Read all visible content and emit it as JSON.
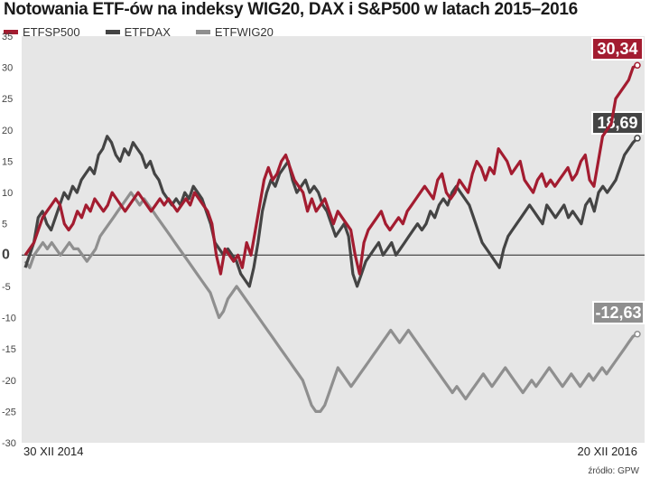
{
  "title": "Notowania ETF-ów na indeksy WIG20, DAX i S&P500  w latach 2015–2016",
  "source": "źródło: GPW",
  "chart_data": {
    "type": "line",
    "ylim": [
      -30,
      35
    ],
    "yticks": [
      35,
      30,
      25,
      20,
      15,
      10,
      5,
      0,
      -5,
      -10,
      -15,
      -20,
      -25,
      -30
    ],
    "x_start_label": "30 XII 2014",
    "x_end_label": "20 XII 2016",
    "grid": false,
    "legend_position": "top-left",
    "series": [
      {
        "name": "ETFSP500",
        "color": "#a31c30",
        "end_label": "30,34",
        "values": [
          0,
          1,
          2,
          4,
          6,
          7,
          8,
          9,
          8,
          5,
          4,
          5,
          7,
          6,
          8,
          7,
          9,
          8,
          7,
          8,
          10,
          9,
          8,
          7,
          8,
          9,
          10,
          9,
          8,
          7,
          8,
          9,
          8,
          9,
          8,
          7,
          8,
          9,
          8,
          10,
          9,
          8,
          7,
          5,
          0,
          -3,
          1,
          0,
          -1,
          0,
          -2,
          2,
          0,
          4,
          8,
          12,
          14,
          12,
          13,
          15,
          16,
          14,
          12,
          11,
          10,
          7,
          9,
          7,
          8,
          9,
          7,
          5,
          7,
          6,
          5,
          4,
          0,
          -3,
          2,
          4,
          5,
          6,
          7,
          5,
          4,
          5,
          6,
          5,
          7,
          8,
          9,
          10,
          11,
          10,
          9,
          12,
          13,
          10,
          9,
          10,
          12,
          11,
          10,
          13,
          15,
          14,
          12,
          14,
          13,
          17,
          16,
          15,
          13,
          14,
          15,
          12,
          11,
          10,
          12,
          13,
          11,
          12,
          11,
          12,
          13,
          14,
          12,
          13,
          15,
          16,
          12,
          11,
          15,
          19,
          20,
          21,
          25,
          26,
          27,
          28,
          30,
          30.34
        ]
      },
      {
        "name": "ETFDAX",
        "color": "#444444",
        "end_label": "18,69",
        "values": [
          -2,
          0,
          2,
          6,
          7,
          5,
          4,
          6,
          8,
          10,
          9,
          11,
          10,
          12,
          13,
          14,
          13,
          16,
          17,
          19,
          18,
          16,
          15,
          17,
          16,
          18,
          17,
          16,
          14,
          15,
          13,
          12,
          10,
          9,
          8,
          9,
          8,
          10,
          9,
          11,
          10,
          9,
          7,
          5,
          2,
          1,
          0,
          1,
          0,
          -1,
          -3,
          -4,
          -5,
          -2,
          2,
          7,
          10,
          12,
          11,
          13,
          14,
          15,
          12,
          10,
          11,
          12,
          10,
          11,
          10,
          8,
          7,
          5,
          3,
          4,
          5,
          3,
          -3,
          -5,
          -3,
          -1,
          0,
          1,
          2,
          0,
          1,
          2,
          0,
          1,
          2,
          3,
          4,
          5,
          4,
          5,
          7,
          6,
          8,
          9,
          8,
          10,
          11,
          10,
          9,
          8,
          6,
          4,
          2,
          1,
          0,
          -1,
          -2,
          1,
          3,
          4,
          5,
          6,
          7,
          8,
          7,
          6,
          5,
          8,
          7,
          6,
          7,
          8,
          6,
          7,
          6,
          5,
          8,
          9,
          7,
          10,
          11,
          10,
          11,
          12,
          14,
          16,
          17,
          18,
          18.69
        ]
      },
      {
        "name": "ETFWIG20",
        "color": "#8f8f8f",
        "end_label": "-12,63",
        "values": [
          -1,
          -2,
          0,
          1,
          2,
          1,
          2,
          1,
          0,
          1,
          2,
          1,
          1,
          0,
          -1,
          0,
          1,
          3,
          4,
          5,
          6,
          7,
          8,
          9,
          10,
          9,
          8,
          9,
          8,
          7,
          6,
          5,
          4,
          3,
          2,
          1,
          0,
          -1,
          -2,
          -3,
          -4,
          -5,
          -6,
          -8,
          -10,
          -9,
          -7,
          -6,
          -5,
          -6,
          -7,
          -8,
          -9,
          -10,
          -11,
          -12,
          -13,
          -14,
          -15,
          -16,
          -17,
          -18,
          -19,
          -20,
          -22,
          -24,
          -25,
          -25,
          -24,
          -22,
          -20,
          -18,
          -19,
          -20,
          -21,
          -20,
          -19,
          -18,
          -17,
          -16,
          -15,
          -14,
          -13,
          -12,
          -13,
          -14,
          -13,
          -12,
          -13,
          -14,
          -15,
          -16,
          -17,
          -18,
          -19,
          -20,
          -21,
          -22,
          -21,
          -22,
          -23,
          -22,
          -21,
          -20,
          -19,
          -20,
          -21,
          -20,
          -19,
          -18,
          -19,
          -20,
          -21,
          -22,
          -21,
          -20,
          -21,
          -20,
          -19,
          -18,
          -19,
          -20,
          -21,
          -20,
          -19,
          -20,
          -21,
          -20,
          -19,
          -20,
          -19,
          -18,
          -19,
          -18,
          -17,
          -16,
          -15,
          -14,
          -13,
          -12.63
        ]
      }
    ]
  }
}
